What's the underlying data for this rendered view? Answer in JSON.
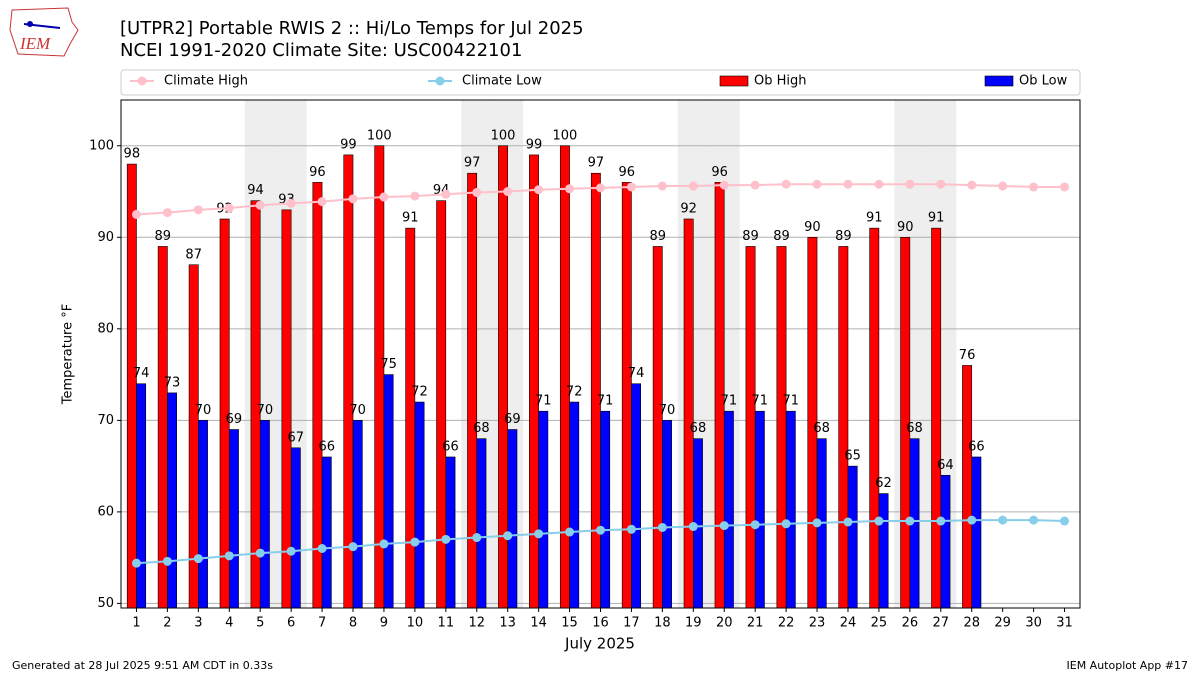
{
  "logo_text": "IEM",
  "footer_left": "Generated at 28 Jul 2025 9:51 AM CDT in 0.33s",
  "footer_right": "IEM Autoplot App #17",
  "chart_data": {
    "type": "bar",
    "title": "[UTPR2] Portable RWIS 2  :: Hi/Lo Temps for Jul 2025",
    "subtitle": "NCEI 1991-2020 Climate Site: USC00422101",
    "x_label": "July 2025",
    "y_label": "Temperature °F",
    "x": [
      1,
      2,
      3,
      4,
      5,
      6,
      7,
      8,
      9,
      10,
      11,
      12,
      13,
      14,
      15,
      16,
      17,
      18,
      19,
      20,
      21,
      22,
      23,
      24,
      25,
      26,
      27,
      28,
      29,
      30,
      31
    ],
    "xlim": [
      0.5,
      31.5
    ],
    "xticks": [
      1,
      2,
      3,
      4,
      5,
      6,
      7,
      8,
      9,
      10,
      11,
      12,
      13,
      14,
      15,
      16,
      17,
      18,
      19,
      20,
      21,
      22,
      23,
      24,
      25,
      26,
      27,
      28,
      29,
      30,
      31
    ],
    "ylim": [
      49.5,
      105
    ],
    "yticks": [
      50,
      60,
      70,
      80,
      90,
      100
    ],
    "grid": true,
    "weekend_days": [
      5,
      6,
      12,
      13,
      19,
      20,
      26,
      27
    ],
    "legend": "top",
    "series": [
      {
        "name": "Climate High",
        "type": "line",
        "color": "#ffc0cb",
        "values": [
          92.5,
          92.7,
          93.0,
          93.2,
          93.5,
          93.7,
          93.9,
          94.2,
          94.4,
          94.5,
          94.7,
          94.9,
          95.0,
          95.2,
          95.3,
          95.4,
          95.5,
          95.6,
          95.6,
          95.7,
          95.7,
          95.8,
          95.8,
          95.8,
          95.8,
          95.8,
          95.8,
          95.7,
          95.6,
          95.5,
          95.5
        ]
      },
      {
        "name": "Climate Low",
        "type": "line",
        "color": "#87ceeb",
        "values": [
          54.4,
          54.6,
          54.9,
          55.2,
          55.5,
          55.7,
          56.0,
          56.2,
          56.5,
          56.7,
          57.0,
          57.2,
          57.4,
          57.6,
          57.8,
          58.0,
          58.1,
          58.3,
          58.4,
          58.5,
          58.6,
          58.7,
          58.8,
          58.9,
          59.0,
          59.0,
          59.0,
          59.1,
          59.1,
          59.1,
          59.0
        ]
      },
      {
        "name": "Ob High",
        "type": "bar",
        "color": "#ff0000",
        "values": [
          98,
          89,
          87,
          92,
          94,
          93,
          96,
          99,
          100,
          91,
          94,
          97,
          100,
          99,
          100,
          97,
          96,
          89,
          92,
          96,
          89,
          89,
          90,
          89,
          91,
          90,
          91,
          76,
          null,
          null,
          null
        ]
      },
      {
        "name": "Ob Low",
        "type": "bar",
        "color": "#0000ff",
        "values": [
          74,
          73,
          70,
          69,
          70,
          67,
          66,
          70,
          75,
          72,
          66,
          68,
          69,
          71,
          72,
          71,
          74,
          70,
          68,
          71,
          71,
          71,
          68,
          65,
          62,
          68,
          64,
          66,
          null,
          null,
          null
        ]
      }
    ]
  }
}
